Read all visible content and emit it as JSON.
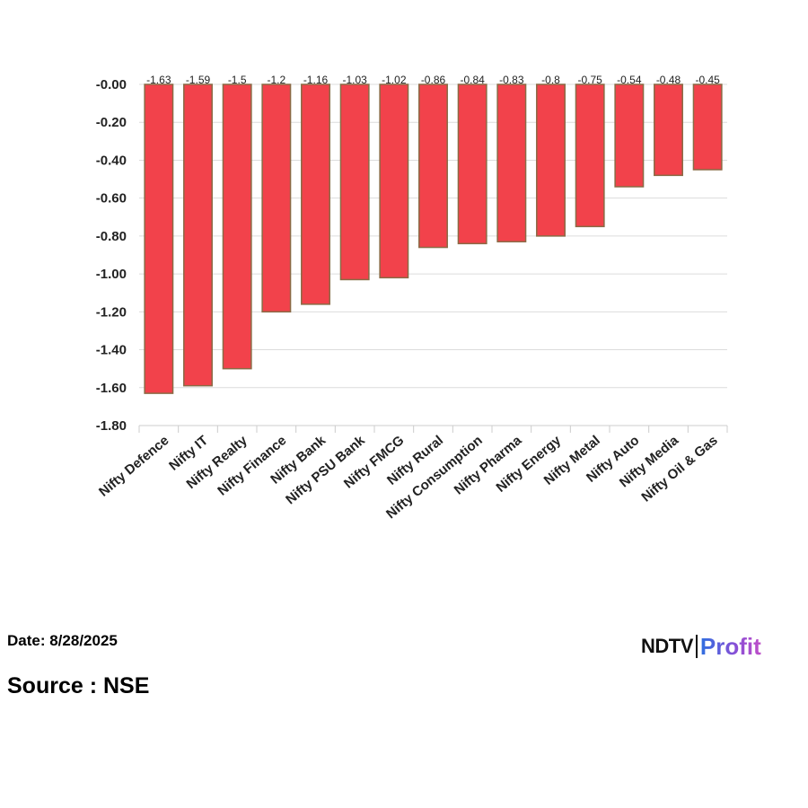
{
  "chart_data": {
    "type": "bar",
    "categories": [
      "Nifty Defence",
      "Nifty IT",
      "Nifty Realty",
      "Nifty Finance",
      "Nifty Bank",
      "Nifty PSU Bank",
      "Nifty FMCG",
      "Nifty Rural",
      "Nifty Consumption",
      "Nifty Pharma",
      "Nifty Energy",
      "Nifty Metal",
      "Nifty Auto",
      "Nifty Media",
      "Nifty Oil & Gas"
    ],
    "values": [
      -1.63,
      -1.59,
      -1.5,
      -1.2,
      -1.16,
      -1.03,
      -1.02,
      -0.86,
      -0.84,
      -0.83,
      -0.8,
      -0.75,
      -0.54,
      -0.48,
      -0.45
    ],
    "value_labels": [
      "-1.63",
      "-1.59",
      "-1.5",
      "-1.2",
      "-1.16",
      "-1.03",
      "-1.02",
      "-0.86",
      "-0.84",
      "-0.83",
      "-0.8",
      "-0.75",
      "-0.54",
      "-0.48",
      "-0.45"
    ],
    "yticks": [
      "-0.00",
      "-0.20",
      "-0.40",
      "-0.60",
      "-0.80",
      "-1.00",
      "-1.20",
      "-1.40",
      "-1.60",
      "-1.80"
    ],
    "ylim": [
      -1.8,
      0
    ],
    "grid": true,
    "bar_color": "#f2424b",
    "bar_edge_color": "#8a6a45",
    "title": "",
    "xlabel": "",
    "ylabel": ""
  },
  "footer": {
    "date": "Date: 8/28/2025",
    "source": "Source : NSE"
  },
  "logo": {
    "ndtv": "NDTV",
    "profit": "Profit"
  }
}
